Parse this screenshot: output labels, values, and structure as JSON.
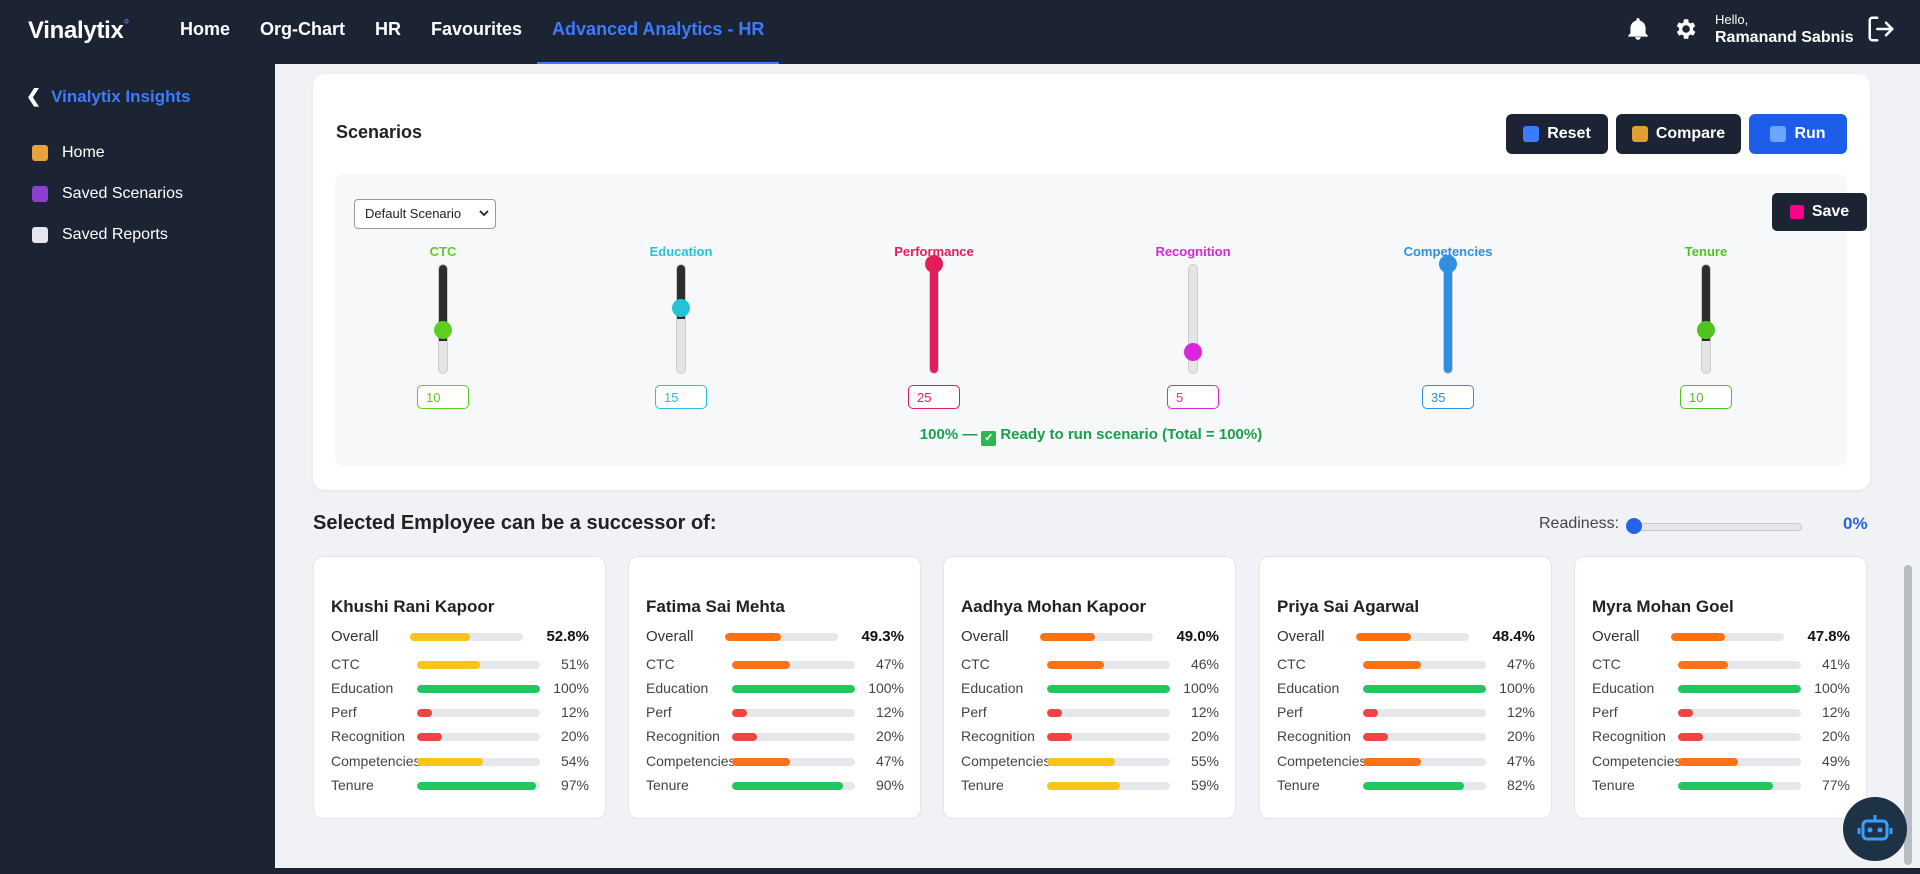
{
  "app": {
    "logo": "Vinalytix",
    "logo_mark": "°"
  },
  "nav": [
    "Home",
    "Org-Chart",
    "HR",
    "Favourites",
    "Advanced Analytics - HR"
  ],
  "user": {
    "greeting": "Hello,",
    "name": "Ramanand Sabnis"
  },
  "sidebar": {
    "title": "Vinalytix Insights",
    "items": [
      "Home",
      "Saved Scenarios",
      "Saved Reports"
    ]
  },
  "scenarios": {
    "title": "Scenarios",
    "reset_label": "Reset",
    "compare_label": "Compare",
    "run_label": "Run",
    "save_label": "Save",
    "selected_scenario": "Default Scenario",
    "sliders": [
      {
        "label": "CTC",
        "value": "10",
        "color": "#5ccf1f"
      },
      {
        "label": "Education",
        "value": "15",
        "color": "#22c3da"
      },
      {
        "label": "Performance",
        "value": "25",
        "color": "#e11d5a"
      },
      {
        "label": "Recognition",
        "value": "5",
        "color": "#d926d9"
      },
      {
        "label": "Competencies",
        "value": "35",
        "color": "#2f8fe0"
      },
      {
        "label": "Tenure",
        "value": "10",
        "color": "#4fc41f"
      }
    ],
    "total_text": "100% —",
    "ready_text": "Ready to run scenario (Total = 100%)"
  },
  "successors": {
    "title": "Selected Employee can be a successor of:",
    "readiness_label": "Readiness:",
    "readiness_value": "0%",
    "readiness_fraction": 0,
    "metric_labels": [
      "Overall",
      "CTC",
      "Education",
      "Perf",
      "Recognition",
      "Competencies",
      "Tenure"
    ],
    "cards": [
      {
        "name": "Khushi Rani Kapoor",
        "values": [
          "52.8%",
          "51%",
          "100%",
          "12%",
          "20%",
          "54%",
          "97%"
        ]
      },
      {
        "name": "Fatima Sai Mehta",
        "values": [
          "49.3%",
          "47%",
          "100%",
          "12%",
          "20%",
          "47%",
          "90%"
        ]
      },
      {
        "name": "Aadhya Mohan Kapoor",
        "values": [
          "49.0%",
          "46%",
          "100%",
          "12%",
          "20%",
          "55%",
          "59%"
        ]
      },
      {
        "name": "Priya Sai Agarwal",
        "values": [
          "48.4%",
          "47%",
          "100%",
          "12%",
          "20%",
          "47%",
          "82%"
        ]
      },
      {
        "name": "Myra Mohan Goel",
        "values": [
          "47.8%",
          "41%",
          "100%",
          "12%",
          "20%",
          "49%",
          "77%"
        ]
      }
    ]
  },
  "colors": {
    "accent": "#3a7bff",
    "navy": "#1c2434",
    "run": "#1d5ee8",
    "high": "#22c55e",
    "mid": "#f5c518",
    "low": "#f97316",
    "poor": "#ef4444"
  }
}
